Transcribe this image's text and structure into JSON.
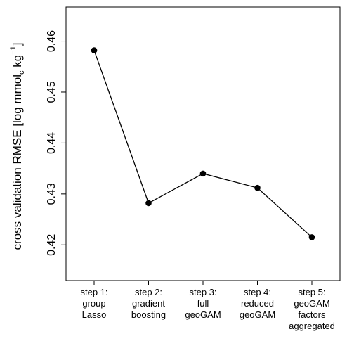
{
  "chart_data": {
    "type": "line",
    "ylabel_main": "cross validation RMSE [log mmol",
    "ylabel_sub": "c",
    "ylabel_mid": " kg",
    "ylabel_sup": "−1",
    "ylabel_end": "]",
    "categories": [
      [
        "step 1:",
        "group",
        "Lasso"
      ],
      [
        "step 2:",
        "gradient",
        "boosting"
      ],
      [
        "step 3:",
        "full",
        "geoGAM"
      ],
      [
        "step 4:",
        "reduced",
        "geoGAM"
      ],
      [
        "step 5:",
        "geoGAM",
        "factors",
        "aggregated"
      ]
    ],
    "values": [
      0.4582,
      0.4282,
      0.434,
      0.4312,
      0.4215
    ],
    "ylim": [
      0.413,
      0.4667
    ],
    "yticks": [
      0.42,
      0.43,
      0.44,
      0.45,
      0.46
    ],
    "ytick_labels": [
      "0.42",
      "0.43",
      "0.44",
      "0.45",
      "0.46"
    ],
    "grid": false,
    "colors": {
      "line": "#000000",
      "points": "#000000"
    }
  }
}
